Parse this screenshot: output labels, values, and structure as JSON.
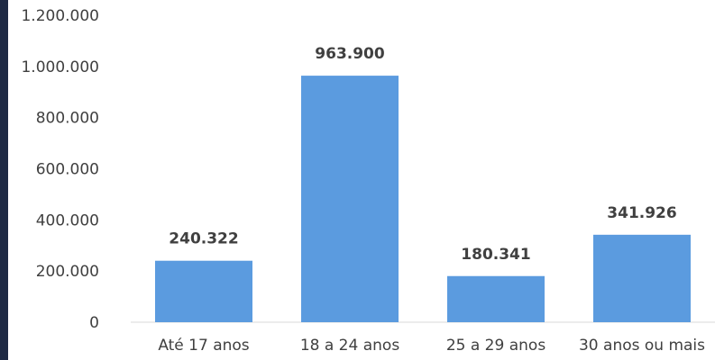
{
  "chart_data": {
    "type": "bar",
    "title": "",
    "xlabel": "",
    "ylabel": "",
    "categories": [
      "Até 17 anos",
      "18 a 24 anos",
      "25 a 29 anos",
      "30 anos ou mais"
    ],
    "values": [
      240322,
      963900,
      180341,
      341926
    ],
    "value_labels": [
      "240.322",
      "963.900",
      "180.341",
      "341.926"
    ],
    "ylim": [
      0,
      1200000
    ],
    "y_ticks": [
      0,
      200000,
      400000,
      600000,
      800000,
      1000000,
      1200000
    ],
    "y_tick_labels": [
      "0",
      "200.000",
      "400.000",
      "600.000",
      "800.000",
      "1.000.000",
      "1.200.000"
    ],
    "grid": false,
    "legend": "none",
    "bar_color": "#5b9bdf",
    "accent_color": "#1f2a44"
  }
}
